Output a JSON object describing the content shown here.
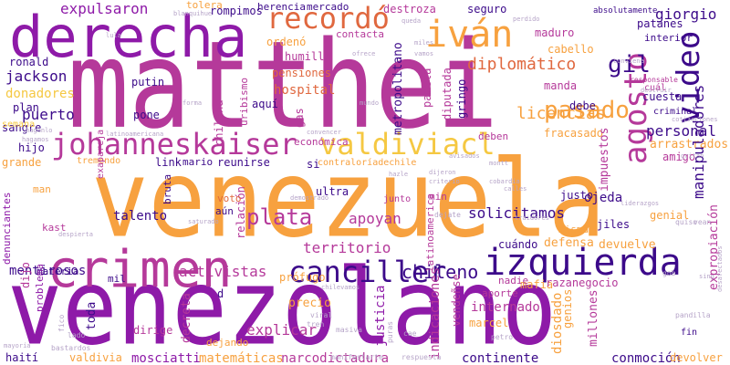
{
  "palette": {
    "orange": "#f7a13f",
    "magenta": "#b5399a",
    "purple": "#8e1aa8",
    "indigo": "#3c0a8a",
    "coral": "#e0683f",
    "yellow": "#f5c842",
    "gray": "#b6a4c8"
  },
  "words": [
    {
      "text": "matthei",
      "c": "magenta"
    },
    {
      "text": "venezuela",
      "c": "orange"
    },
    {
      "text": "venezolano",
      "c": "purple"
    },
    {
      "text": "derecha",
      "c": "purple"
    },
    {
      "text": "crimen",
      "c": "magenta"
    },
    {
      "text": "izquierda",
      "c": "indigo"
    },
    {
      "text": "canciller",
      "c": "indigo"
    },
    {
      "text": "johanneskaiser",
      "c": "magenta"
    },
    {
      "text": "valdiviacl",
      "c": "yellow"
    },
    {
      "text": "recordó",
      "c": "coral"
    },
    {
      "text": "iván",
      "c": "orange"
    },
    {
      "text": "pasado",
      "c": "orange"
    },
    {
      "text": "agosto",
      "c": "magenta"
    },
    {
      "text": "video",
      "c": "indigo"
    },
    {
      "text": "gil",
      "c": "indigo"
    },
    {
      "text": "plata",
      "c": "magenta"
    },
    {
      "text": "chileno",
      "c": "indigo"
    },
    {
      "text": "territorio",
      "c": "magenta"
    },
    {
      "text": "solicitamos",
      "c": "indigo"
    },
    {
      "text": "apoyan",
      "c": "magenta"
    },
    {
      "text": "activistas",
      "c": "magenta"
    },
    {
      "text": "mentirosos",
      "c": "indigo"
    },
    {
      "text": "talento",
      "c": "indigo"
    },
    {
      "text": "puerto",
      "c": "indigo"
    },
    {
      "text": "jackson",
      "c": "indigo"
    },
    {
      "text": "donadores",
      "c": "yellow"
    },
    {
      "text": "licencias",
      "c": "orange"
    },
    {
      "text": "personal",
      "c": "indigo"
    },
    {
      "text": "diplomático",
      "c": "coral"
    },
    {
      "text": "expulsaron",
      "c": "purple"
    },
    {
      "text": "giorgio",
      "c": "indigo"
    },
    {
      "text": "hospital",
      "c": "coral"
    },
    {
      "text": "arrastrados",
      "c": "orange"
    },
    {
      "text": "explicar",
      "c": "magenta"
    },
    {
      "text": "conmoción",
      "c": "indigo"
    },
    {
      "text": "narcodictadura",
      "c": "magenta"
    },
    {
      "text": "mosciatti",
      "c": "purple"
    },
    {
      "text": "continente",
      "c": "indigo"
    },
    {
      "text": "matemáticas",
      "c": "orange"
    },
    {
      "text": "devolver",
      "c": "orange"
    },
    {
      "text": "haití",
      "c": "indigo"
    },
    {
      "text": "valdivia",
      "c": "orange"
    },
    {
      "text": "manipuladores",
      "c": "indigo"
    },
    {
      "text": "expropiación",
      "c": "magenta"
    },
    {
      "text": "ojeda",
      "c": "indigo"
    },
    {
      "text": "justo",
      "c": "indigo"
    },
    {
      "text": "genial",
      "c": "orange"
    },
    {
      "text": "jiles",
      "c": "indigo"
    },
    {
      "text": "defensa",
      "c": "orange"
    },
    {
      "text": "devuelve",
      "c": "orange"
    },
    {
      "text": "cuándo",
      "c": "indigo"
    },
    {
      "text": "internado",
      "c": "magenta"
    },
    {
      "text": "indicaciones",
      "c": "magenta"
    },
    {
      "text": "diosdado",
      "c": "orange"
    },
    {
      "text": "justicia",
      "c": "purple"
    },
    {
      "text": "marcel",
      "c": "orange"
    },
    {
      "text": "precio",
      "c": "orange"
    },
    {
      "text": "toda",
      "c": "indigo"
    },
    {
      "text": "dirige",
      "c": "magenta"
    },
    {
      "text": "decreta",
      "c": "magenta"
    },
    {
      "text": "dejando",
      "c": "orange"
    },
    {
      "text": "mafia",
      "c": "orange"
    },
    {
      "text": "millones",
      "c": "magenta"
    },
    {
      "text": "genios",
      "c": "orange"
    },
    {
      "text": "razanegocio",
      "c": "magenta"
    },
    {
      "text": "fracasado",
      "c": "orange"
    },
    {
      "text": "impuestos",
      "c": "magenta"
    },
    {
      "text": "amigo",
      "c": "magenta"
    },
    {
      "text": "sangre",
      "c": "indigo"
    },
    {
      "text": "hijo",
      "c": "indigo"
    },
    {
      "text": "plan",
      "c": "indigo"
    },
    {
      "text": "grande",
      "c": "orange"
    },
    {
      "text": "ronald",
      "c": "indigo"
    },
    {
      "text": "putin",
      "c": "indigo"
    },
    {
      "text": "pone",
      "c": "indigo"
    },
    {
      "text": "aquí",
      "c": "indigo"
    },
    {
      "text": "gas",
      "c": "magenta"
    },
    {
      "text": "chilena",
      "c": "magenta"
    },
    {
      "text": "uribismo",
      "c": "magenta"
    },
    {
      "text": "metropolitano",
      "c": "indigo"
    },
    {
      "text": "pamela",
      "c": "magenta"
    },
    {
      "text": "diputada",
      "c": "magenta"
    },
    {
      "text": "gringo",
      "c": "indigo"
    },
    {
      "text": "manda",
      "c": "magenta"
    },
    {
      "text": "debe",
      "c": "indigo"
    },
    {
      "text": "cuesta",
      "c": "indigo"
    },
    {
      "text": "pensiones",
      "c": "coral"
    },
    {
      "text": "humilla",
      "c": "magenta"
    },
    {
      "text": "ordenó",
      "c": "orange"
    },
    {
      "text": "contacta",
      "c": "magenta"
    },
    {
      "text": "destroza",
      "c": "magenta"
    },
    {
      "text": "seguro",
      "c": "indigo"
    },
    {
      "text": "maduro",
      "c": "magenta"
    },
    {
      "text": "patanes",
      "c": "indigo"
    },
    {
      "text": "interior",
      "c": "indigo"
    },
    {
      "text": "cabello",
      "c": "orange"
    },
    {
      "text": "herencia",
      "c": "indigo"
    },
    {
      "text": "mercado",
      "c": "indigo"
    },
    {
      "text": "tolera",
      "c": "orange"
    },
    {
      "text": "rompimos",
      "c": "indigo"
    },
    {
      "text": "reunirse",
      "c": "indigo"
    },
    {
      "text": "mario",
      "c": "indigo"
    },
    {
      "text": "link",
      "c": "indigo"
    },
    {
      "text": "si",
      "c": "indigo"
    },
    {
      "text": "ultra",
      "c": "indigo"
    },
    {
      "text": "relación",
      "c": "magenta"
    },
    {
      "text": "voto",
      "c": "coral"
    },
    {
      "text": "aún",
      "c": "indigo"
    },
    {
      "text": "bruta",
      "c": "indigo"
    },
    {
      "text": "man",
      "c": "orange"
    },
    {
      "text": "kast",
      "c": "magenta"
    },
    {
      "text": "materia",
      "c": "indigo"
    },
    {
      "text": "dijo",
      "c": "magenta"
    },
    {
      "text": "problema",
      "c": "purple"
    },
    {
      "text": "mil",
      "c": "indigo"
    },
    {
      "text": "denunciantes",
      "c": "purple"
    },
    {
      "text": "prófugo",
      "c": "orange"
    },
    {
      "text": "misma",
      "c": "orange"
    },
    {
      "text": "min",
      "c": "magenta"
    },
    {
      "text": "económica",
      "c": "magenta"
    },
    {
      "text": "deben",
      "c": "magenta"
    },
    {
      "text": "criminal",
      "c": "indigo"
    },
    {
      "text": "d",
      "c": "indigo"
    },
    {
      "text": "vendeñse",
      "c": "magenta"
    },
    {
      "text": "nadie",
      "c": "magenta"
    },
    {
      "text": "aporte",
      "c": "magenta"
    },
    {
      "text": "latinoamerica",
      "c": "magenta"
    },
    {
      "text": "contraloríadechile",
      "c": "orange"
    },
    {
      "text": "semana",
      "c": "yellow"
    },
    {
      "text": "tremendo",
      "c": "orange"
    },
    {
      "text": "exapareja",
      "c": "magenta"
    },
    {
      "text": "junto",
      "c": "magenta"
    },
    {
      "text": "dejate",
      "c": "gray"
    },
    {
      "text": "viral",
      "c": "gray"
    },
    {
      "text": "tren",
      "c": "gray"
    },
    {
      "text": "masiva",
      "c": "gray"
    },
    {
      "text": "puras",
      "c": "gray"
    },
    {
      "text": "cae",
      "c": "gray"
    },
    {
      "text": "petro",
      "c": "gray"
    },
    {
      "text": "fin",
      "c": "indigo"
    },
    {
      "text": "pandilla",
      "c": "gray"
    },
    {
      "text": "vean",
      "c": "gray"
    },
    {
      "text": "quiso",
      "c": "gray"
    },
    {
      "text": "gob",
      "c": "gray"
    },
    {
      "text": "lado",
      "c": "gray"
    },
    {
      "text": "fico",
      "c": "gray"
    },
    {
      "text": "bastardos",
      "c": "gray"
    },
    {
      "text": "manifestarte",
      "c": "gray"
    },
    {
      "text": "respuesta",
      "c": "gray"
    },
    {
      "text": "absolutamente",
      "c": "indigo"
    },
    {
      "text": "cuál",
      "c": "magenta"
    },
    {
      "text": "responsable",
      "c": "magenta"
    },
    {
      "text": "cotizaciones",
      "c": "gray"
    },
    {
      "text": "gritan",
      "c": "gray"
    },
    {
      "text": "avisados",
      "c": "gray"
    },
    {
      "text": "montt",
      "c": "gray"
    },
    {
      "text": "calles",
      "c": "gray"
    },
    {
      "text": "cobardía",
      "c": "gray"
    },
    {
      "text": "criterio",
      "c": "gray"
    },
    {
      "text": "dijeron",
      "c": "gray"
    },
    {
      "text": "hazle",
      "c": "gray"
    },
    {
      "text": "demostrado",
      "c": "gray"
    },
    {
      "text": "saturado",
      "c": "gray"
    },
    {
      "text": "despierta",
      "c": "gray"
    },
    {
      "text": "convencer",
      "c": "gray"
    },
    {
      "text": "mundo",
      "c": "gray"
    },
    {
      "text": "forma",
      "c": "gray"
    },
    {
      "text": "ofrece",
      "c": "gray"
    },
    {
      "text": "vamos",
      "c": "gray"
    },
    {
      "text": "queda",
      "c": "gray"
    },
    {
      "text": "perdido",
      "c": "gray"
    },
    {
      "text": "miles",
      "c": "gray"
    },
    {
      "text": "lula",
      "c": "gray"
    },
    {
      "text": "blanquihue",
      "c": "gray"
    },
    {
      "text": "hagamos",
      "c": "gray"
    },
    {
      "text": "haganlo",
      "c": "gray"
    },
    {
      "text": "latinoamericana",
      "c": "gray"
    },
    {
      "text": "traidores",
      "c": "gray"
    },
    {
      "text": "liderazgos",
      "c": "gray"
    },
    {
      "text": "destruir",
      "c": "gray"
    },
    {
      "text": "conviene",
      "c": "gray"
    },
    {
      "text": "chilevamos",
      "c": "gray"
    },
    {
      "text": "mayoría",
      "c": "gray"
    },
    {
      "text": "desafectados",
      "c": "gray"
    },
    {
      "text": "sing",
      "c": "gray"
    }
  ]
}
